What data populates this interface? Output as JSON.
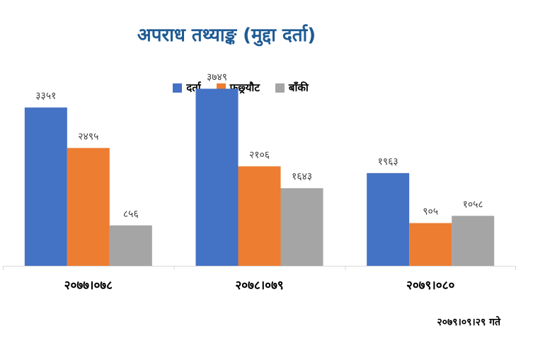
{
  "chart_data": {
    "type": "bar",
    "title": "अपराध तथ्याङ्क (मुद्दा दर्ता)",
    "categories": [
      "२०७७।०७८",
      "२०७८।०७९",
      "२०७९।०८०"
    ],
    "series": [
      {
        "name": "दर्ता",
        "color": "#4472c4",
        "values": [
          3351,
          3749,
          1963
        ],
        "labels": [
          "३३५१",
          "३७४९",
          "१९६३"
        ]
      },
      {
        "name": "फछ्र्यौट",
        "color": "#ed7d31",
        "values": [
          2495,
          2106,
          905
        ],
        "labels": [
          "२४९५",
          "२१०६",
          "९०५"
        ]
      },
      {
        "name": "बाँकी",
        "color": "#a5a5a5",
        "values": [
          856,
          1643,
          1058
        ],
        "labels": [
          "८५६",
          "१६४३",
          "१०५८"
        ]
      }
    ],
    "ylim": [
      0,
      4400
    ],
    "grid": false,
    "legend_position": "top"
  },
  "footer_date": "२०७९।०९।२९ गते"
}
